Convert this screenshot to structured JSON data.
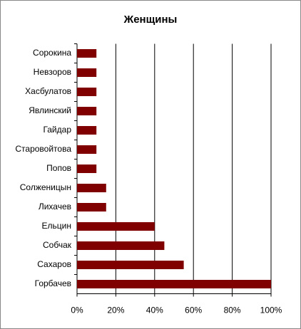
{
  "chart_data": {
    "type": "bar",
    "orientation": "horizontal",
    "title": "Женщины",
    "categories": [
      "Сорокина",
      "Невзоров",
      "Хасбулатов",
      "Явлинский",
      "Гайдар",
      "Старовойтова",
      "Попов",
      "Солженицын",
      "Лихачев",
      "Ельцин",
      "Собчак",
      "Сахаров",
      "Горбачев"
    ],
    "values": [
      10,
      10,
      10,
      10,
      10,
      10,
      10,
      15,
      15,
      40,
      45,
      55,
      100
    ],
    "color": "#800000",
    "xlim": [
      0,
      100
    ],
    "xticks": [
      {
        "value": 0,
        "label": "0%"
      },
      {
        "value": 20,
        "label": "20%"
      },
      {
        "value": 40,
        "label": "40%"
      },
      {
        "value": 60,
        "label": "60%"
      },
      {
        "value": 80,
        "label": "80%"
      },
      {
        "value": 100,
        "label": "100%"
      }
    ],
    "grid": true
  }
}
